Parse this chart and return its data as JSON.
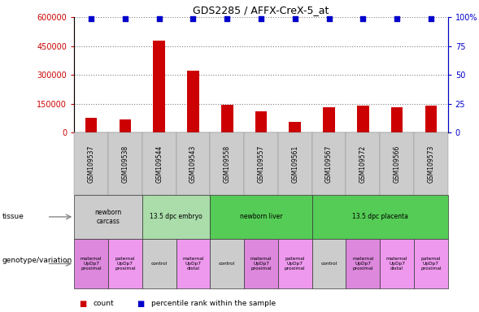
{
  "title": "GDS2285 / AFFX-CreX-5_at",
  "samples": [
    "GSM109537",
    "GSM109538",
    "GSM109544",
    "GSM109543",
    "GSM109558",
    "GSM109557",
    "GSM109561",
    "GSM109567",
    "GSM109572",
    "GSM109566",
    "GSM109573"
  ],
  "counts": [
    75000,
    70000,
    480000,
    320000,
    145000,
    110000,
    55000,
    130000,
    140000,
    130000,
    140000
  ],
  "percentiles": [
    99,
    99,
    99,
    99,
    99,
    99,
    99,
    99,
    99,
    99,
    99
  ],
  "bar_color": "#cc0000",
  "dot_color": "#0000cc",
  "ylim_left": [
    0,
    600000
  ],
  "ylim_right": [
    0,
    100
  ],
  "yticks_left": [
    0,
    150000,
    300000,
    450000,
    600000
  ],
  "ytick_labels_left": [
    "0",
    "150000",
    "300000",
    "450000",
    "600000"
  ],
  "yticks_right": [
    0,
    25,
    50,
    75,
    100
  ],
  "ytick_labels_right": [
    "0",
    "25",
    "50",
    "75",
    "100%"
  ],
  "tissue_groups": [
    {
      "label": "newborn\ncarcass",
      "start": 0,
      "end": 2,
      "color": "#cccccc"
    },
    {
      "label": "13.5 dpc embryo",
      "start": 2,
      "end": 4,
      "color": "#aaddaa"
    },
    {
      "label": "newborn liver",
      "start": 4,
      "end": 7,
      "color": "#55cc55"
    },
    {
      "label": "13.5 dpc placenta",
      "start": 7,
      "end": 11,
      "color": "#55cc55"
    }
  ],
  "genotype_groups": [
    {
      "label": "maternal\nUpDp7\nproximal",
      "start": 0,
      "end": 1,
      "color": "#dd88dd"
    },
    {
      "label": "paternal\nUpDp7\nproximal",
      "start": 1,
      "end": 2,
      "color": "#ee99ee"
    },
    {
      "label": "control",
      "start": 2,
      "end": 3,
      "color": "#cccccc"
    },
    {
      "label": "maternal\nUpDp7\ndistal",
      "start": 3,
      "end": 4,
      "color": "#ee99ee"
    },
    {
      "label": "control",
      "start": 4,
      "end": 5,
      "color": "#cccccc"
    },
    {
      "label": "maternal\nUpDp7\nproximal",
      "start": 5,
      "end": 6,
      "color": "#dd88dd"
    },
    {
      "label": "paternal\nUpDp7\nproximal",
      "start": 6,
      "end": 7,
      "color": "#ee99ee"
    },
    {
      "label": "control",
      "start": 7,
      "end": 8,
      "color": "#cccccc"
    },
    {
      "label": "maternal\nUpDp7\nproximal",
      "start": 8,
      "end": 9,
      "color": "#dd88dd"
    },
    {
      "label": "maternal\nUpDp7\ndistal",
      "start": 9,
      "end": 10,
      "color": "#ee99ee"
    },
    {
      "label": "paternal\nUpDp7\nproximal",
      "start": 10,
      "end": 11,
      "color": "#ee99ee"
    }
  ],
  "legend_count_color": "#cc0000",
  "legend_pct_color": "#0000cc",
  "tissue_label": "tissue",
  "genotype_label": "genotype/variation",
  "xlabel_bg_color": "#cccccc"
}
